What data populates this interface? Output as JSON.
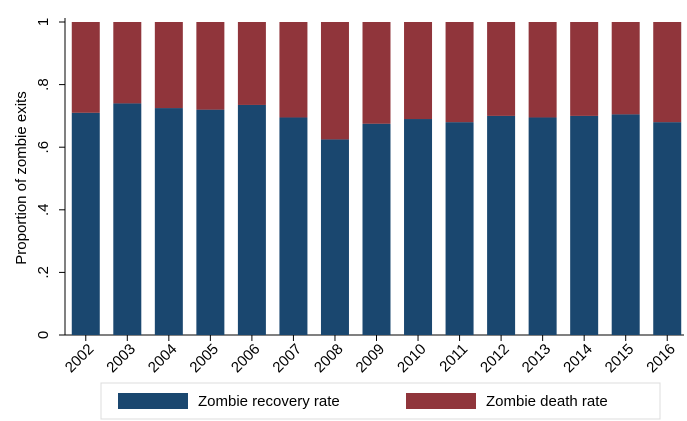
{
  "chart_data": {
    "type": "stacked-bar",
    "y_label": "Proportion of zombie exits",
    "categories": [
      "2002",
      "2003",
      "2004",
      "2005",
      "2006",
      "2007",
      "2008",
      "2009",
      "2010",
      "2011",
      "2012",
      "2013",
      "2014",
      "2015",
      "2016"
    ],
    "series": [
      {
        "name": "Zombie recovery rate",
        "color": "#1a476f",
        "values": [
          0.71,
          0.74,
          0.725,
          0.72,
          0.735,
          0.695,
          0.625,
          0.675,
          0.69,
          0.68,
          0.7,
          0.695,
          0.7,
          0.705,
          0.68
        ]
      },
      {
        "name": "Zombie death rate",
        "color": "#90353b",
        "values": [
          0.29,
          0.26,
          0.275,
          0.28,
          0.265,
          0.305,
          0.375,
          0.325,
          0.31,
          0.32,
          0.3,
          0.305,
          0.3,
          0.295,
          0.32
        ]
      }
    ],
    "ylim": [
      0,
      1
    ],
    "yticks": [
      0,
      {
        "value": 0.2,
        "label": ".2"
      },
      {
        "value": 0.4,
        "label": ".4"
      },
      {
        "value": 0.6,
        "label": ".6"
      },
      {
        "value": 0.8,
        "label": ".8"
      },
      1
    ]
  }
}
